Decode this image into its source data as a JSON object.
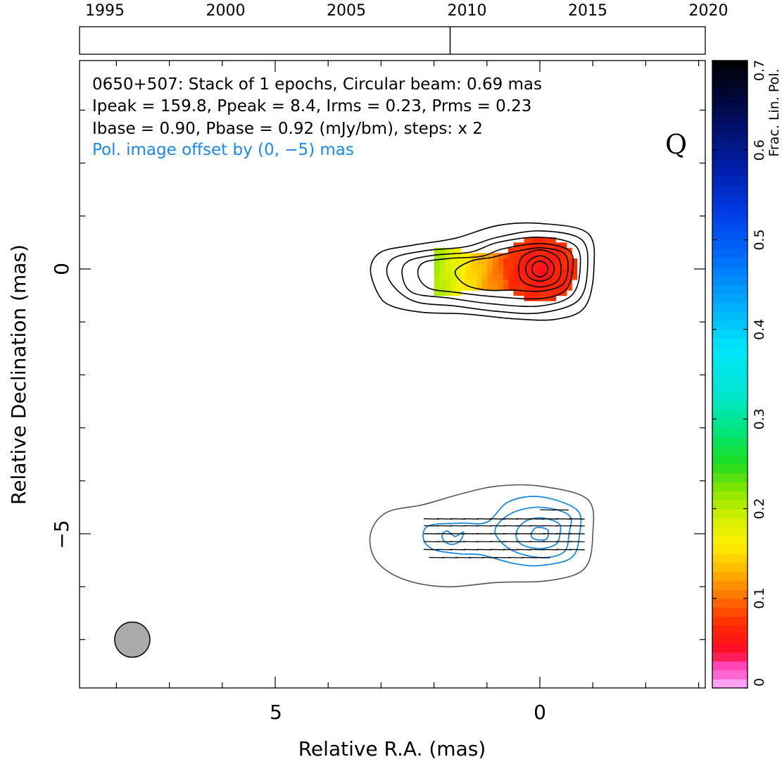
{
  "chart_data": {
    "type": "contour",
    "source": "0650+507",
    "annotation": {
      "line1": "0650+507: Stack of 1 epochs, Circular beam: 0.69 mas",
      "line2": "Ipeak = 159.8, Ppeak = 8.4, Irms = 0.23, Prms = 0.23",
      "line3": "Ibase = 0.90, Pbase = 0.92 (mJy/bm), steps: x 2",
      "line4": "Pol. image offset by (0, −5) mas",
      "band": "Q"
    },
    "xlabel": "Relative R.A. (mas)",
    "ylabel": "Relative Declination (mas)",
    "xlim": [
      8.7,
      -3.1
    ],
    "ylim": [
      -7.9,
      4.0
    ],
    "x_tick_labels": [
      "5",
      "0"
    ],
    "y_tick_labels": [
      "0",
      "−5"
    ],
    "beam": {
      "center": [
        7.7,
        -7.0
      ],
      "diameter_mas": 0.69,
      "color": "#aaaaaa"
    },
    "timeline": {
      "labels": [
        "1995",
        "2000",
        "2005",
        "2010",
        "2015",
        "2020"
      ],
      "years": [
        1995,
        2000,
        2005,
        2010,
        2015,
        2020
      ],
      "epochs": [
        2009.3
      ]
    },
    "colorbar": {
      "label": "Frac. Lin. Pol.",
      "range": [
        0,
        0.7
      ],
      "tick_labels": [
        "0",
        "0.1",
        "0.2",
        "0.3",
        "0.4",
        "0.5",
        "0.6",
        "0.7"
      ],
      "ticks": [
        0,
        0.1,
        0.2,
        0.3,
        0.4,
        0.5,
        0.6,
        0.7
      ]
    },
    "total_intensity_contours": [
      {
        "level": 1,
        "points": [
          [
            0,
            0.86
          ],
          [
            -0.9,
            0.68
          ],
          [
            -1.02,
            0.0
          ],
          [
            -0.85,
            -0.72
          ],
          [
            -0.3,
            -0.95
          ],
          [
            0.5,
            -0.94
          ],
          [
            1.4,
            -0.85
          ],
          [
            2.2,
            -0.82
          ],
          [
            2.8,
            -0.7
          ],
          [
            3.05,
            -0.48
          ],
          [
            3.2,
            0.0
          ],
          [
            3.0,
            0.32
          ],
          [
            2.4,
            0.45
          ],
          [
            1.6,
            0.58
          ],
          [
            0.8,
            0.82
          ]
        ]
      },
      {
        "level": 2,
        "points": [
          [
            0,
            0.72
          ],
          [
            -0.78,
            0.56
          ],
          [
            -0.9,
            0.0
          ],
          [
            -0.72,
            -0.6
          ],
          [
            0.0,
            -0.83
          ],
          [
            0.8,
            -0.8
          ],
          [
            1.6,
            -0.7
          ],
          [
            2.4,
            -0.6
          ],
          [
            2.85,
            -0.2
          ],
          [
            2.8,
            0.18
          ],
          [
            2.2,
            0.34
          ],
          [
            1.4,
            0.42
          ],
          [
            0.8,
            0.6
          ]
        ]
      },
      {
        "level": 4,
        "points": [
          [
            0,
            0.6
          ],
          [
            -0.66,
            0.45
          ],
          [
            -0.76,
            0.0
          ],
          [
            -0.6,
            -0.5
          ],
          [
            0.0,
            -0.7
          ],
          [
            0.9,
            -0.66
          ],
          [
            1.7,
            -0.55
          ],
          [
            2.4,
            -0.45
          ],
          [
            2.6,
            -0.12
          ],
          [
            2.5,
            0.14
          ],
          [
            2.0,
            0.26
          ],
          [
            1.3,
            0.32
          ],
          [
            0.8,
            0.5
          ]
        ]
      },
      {
        "level": 8,
        "points": [
          [
            0,
            0.48
          ],
          [
            -0.55,
            0.35
          ],
          [
            -0.62,
            0.0
          ],
          [
            -0.48,
            -0.4
          ],
          [
            0.0,
            -0.56
          ],
          [
            0.9,
            -0.52
          ],
          [
            1.6,
            -0.44
          ],
          [
            2.1,
            -0.36
          ],
          [
            2.3,
            -0.12
          ],
          [
            2.2,
            0.12
          ],
          [
            1.7,
            0.2
          ],
          [
            1.1,
            0.24
          ],
          [
            0.7,
            0.38
          ]
        ]
      },
      {
        "level": 16,
        "points": [
          [
            0,
            0.4
          ],
          [
            -0.45,
            0.3
          ],
          [
            -0.53,
            0.0
          ],
          [
            -0.42,
            -0.3
          ],
          [
            0.0,
            -0.42
          ],
          [
            0.5,
            -0.4
          ],
          [
            1.0,
            -0.4
          ],
          [
            1.4,
            -0.3
          ],
          [
            1.6,
            -0.05
          ],
          [
            1.3,
            0.15
          ],
          [
            0.9,
            0.22
          ],
          [
            0.5,
            0.32
          ]
        ]
      },
      {
        "level": 32,
        "points": [
          [
            0,
            0.36
          ],
          [
            -0.32,
            0.24
          ],
          [
            -0.4,
            0.0
          ],
          [
            -0.32,
            -0.24
          ],
          [
            0.0,
            -0.34
          ],
          [
            0.32,
            -0.24
          ],
          [
            0.4,
            0.0
          ],
          [
            0.32,
            0.24
          ]
        ]
      },
      {
        "level": 64,
        "points": [
          [
            0,
            0.25
          ],
          [
            -0.2,
            0.16
          ],
          [
            -0.27,
            0.0
          ],
          [
            -0.2,
            -0.16
          ],
          [
            0.0,
            -0.23
          ],
          [
            0.2,
            -0.16
          ],
          [
            0.27,
            0.0
          ],
          [
            0.2,
            0.16
          ]
        ]
      },
      {
        "level": 128,
        "points": [
          [
            0,
            0.15
          ],
          [
            -0.11,
            0.1
          ],
          [
            -0.15,
            0.0
          ],
          [
            -0.11,
            -0.1
          ],
          [
            0.0,
            -0.15
          ],
          [
            0.11,
            -0.1
          ],
          [
            0.15,
            0.0
          ],
          [
            0.11,
            0.1
          ]
        ]
      }
    ],
    "polarization_offset_contour": {
      "points": [
        [
          0,
          -4.1
        ],
        [
          -0.9,
          -4.35
        ],
        [
          -1.0,
          -5.0
        ],
        [
          -0.85,
          -5.65
        ],
        [
          -0.2,
          -5.88
        ],
        [
          0.8,
          -5.92
        ],
        [
          1.8,
          -6.0
        ],
        [
          2.6,
          -5.85
        ],
        [
          3.1,
          -5.5
        ],
        [
          3.2,
          -5.0
        ],
        [
          2.9,
          -4.6
        ],
        [
          2.2,
          -4.45
        ],
        [
          1.5,
          -4.25
        ],
        [
          0.8,
          -4.1
        ]
      ]
    },
    "polarized_intensity_contours": [
      {
        "level": 1,
        "points": [
          [
            0,
            -4.3
          ],
          [
            -0.7,
            -4.55
          ],
          [
            -0.75,
            -5.0
          ],
          [
            -0.6,
            -5.45
          ],
          [
            0.0,
            -5.6
          ],
          [
            0.5,
            -5.56
          ],
          [
            1.1,
            -5.4
          ],
          [
            1.5,
            -5.38
          ],
          [
            2.0,
            -5.3
          ],
          [
            2.2,
            -5.1
          ],
          [
            2.1,
            -4.85
          ],
          [
            1.5,
            -4.8
          ],
          [
            1.0,
            -4.78
          ],
          [
            0.6,
            -4.4
          ]
        ]
      },
      {
        "level": 2,
        "points": [
          [
            0,
            -4.5
          ],
          [
            -0.55,
            -4.65
          ],
          [
            -0.55,
            -5.0
          ],
          [
            -0.45,
            -5.35
          ],
          [
            0.0,
            -5.45
          ],
          [
            0.55,
            -5.3
          ],
          [
            0.85,
            -4.95
          ],
          [
            0.55,
            -4.62
          ]
        ]
      },
      {
        "level": 4,
        "points": [
          [
            0,
            -4.7
          ],
          [
            -0.35,
            -4.8
          ],
          [
            -0.38,
            -5.0
          ],
          [
            -0.3,
            -5.2
          ],
          [
            0.0,
            -5.28
          ],
          [
            0.35,
            -5.2
          ],
          [
            0.45,
            -5.0
          ],
          [
            0.3,
            -4.78
          ]
        ]
      },
      {
        "level": 8,
        "points": [
          [
            0,
            -4.88
          ],
          [
            -0.14,
            -4.92
          ],
          [
            -0.16,
            -5.0
          ],
          [
            -0.12,
            -5.1
          ],
          [
            0.0,
            -5.12
          ],
          [
            0.14,
            -5.08
          ],
          [
            0.16,
            -5.0
          ],
          [
            0.1,
            -4.9
          ]
        ]
      },
      {
        "level": 2,
        "points": [
          [
            1.6,
            -5.05
          ],
          [
            1.45,
            -4.97
          ],
          [
            1.5,
            -5.13
          ],
          [
            1.65,
            -5.2
          ],
          [
            1.8,
            -5.15
          ],
          [
            1.85,
            -5.02
          ],
          [
            1.75,
            -4.95
          ]
        ]
      }
    ],
    "fractional_polarization_pixels": {
      "pixel_mas": 0.1,
      "region": "core and inner jet",
      "values_range": [
        0.04,
        0.22
      ]
    },
    "evpa_vectors": {
      "rows_dec": [
        -4.55,
        -4.72,
        -4.85,
        -5.0,
        -5.15,
        -5.3,
        -5.45
      ],
      "ra_span": [
        -0.7,
        2.1
      ],
      "angle_deg": 95
    }
  }
}
